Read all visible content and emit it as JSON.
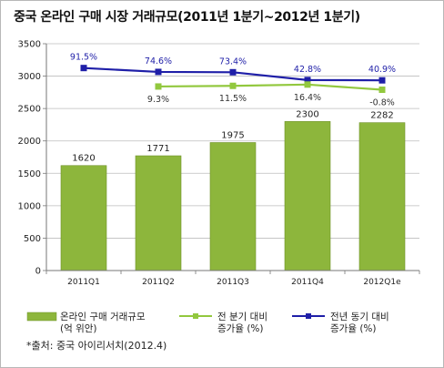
{
  "title": "중국 온라인 구매 시장 거래규모(2011년 1분기~2012년 1분기)",
  "source_note": "*출처: 중국 아이리서치(2012.4)",
  "chart_data": {
    "type": "bar",
    "categories": [
      "2011Q1",
      "2011Q2",
      "2011Q3",
      "2011Q4",
      "2012Q1e"
    ],
    "ylim": [
      0,
      3500
    ],
    "yticks": [
      0,
      500,
      1000,
      1500,
      2000,
      2500,
      3000,
      3500
    ],
    "grid": true,
    "legend_position": "bottom",
    "series": [
      {
        "name": "온라인 구매 거래규모 (억 위안)",
        "type": "bar",
        "color": "#8db63c",
        "values": [
          1620,
          1771,
          1975,
          2300,
          2282
        ],
        "labels": [
          "1620",
          "1771",
          "1975",
          "2300",
          "2282"
        ]
      },
      {
        "name": "전 분기 대비 증가율 (%)",
        "type": "line",
        "color": "#92c83e",
        "plot_values": [
          null,
          2840,
          2850,
          2870,
          2790
        ],
        "labels": [
          "",
          "9.3%",
          "11.5%",
          "16.4%",
          "-0.8%"
        ]
      },
      {
        "name": "전년 동기 대비 증가율 (%)",
        "type": "line",
        "color": "#1f1fa8",
        "plot_values": [
          3125,
          3065,
          3060,
          2940,
          2935
        ],
        "labels": [
          "91.5%",
          "74.6%",
          "73.4%",
          "42.8%",
          "40.9%"
        ]
      }
    ]
  },
  "legend": [
    {
      "line1": "온라인 구매 거래규모",
      "line2": "(억 위안)"
    },
    {
      "line1": "전 분기 대비",
      "line2": "증가율 (%)"
    },
    {
      "line1": "전년 동기 대비",
      "line2": "증가율 (%)"
    }
  ]
}
